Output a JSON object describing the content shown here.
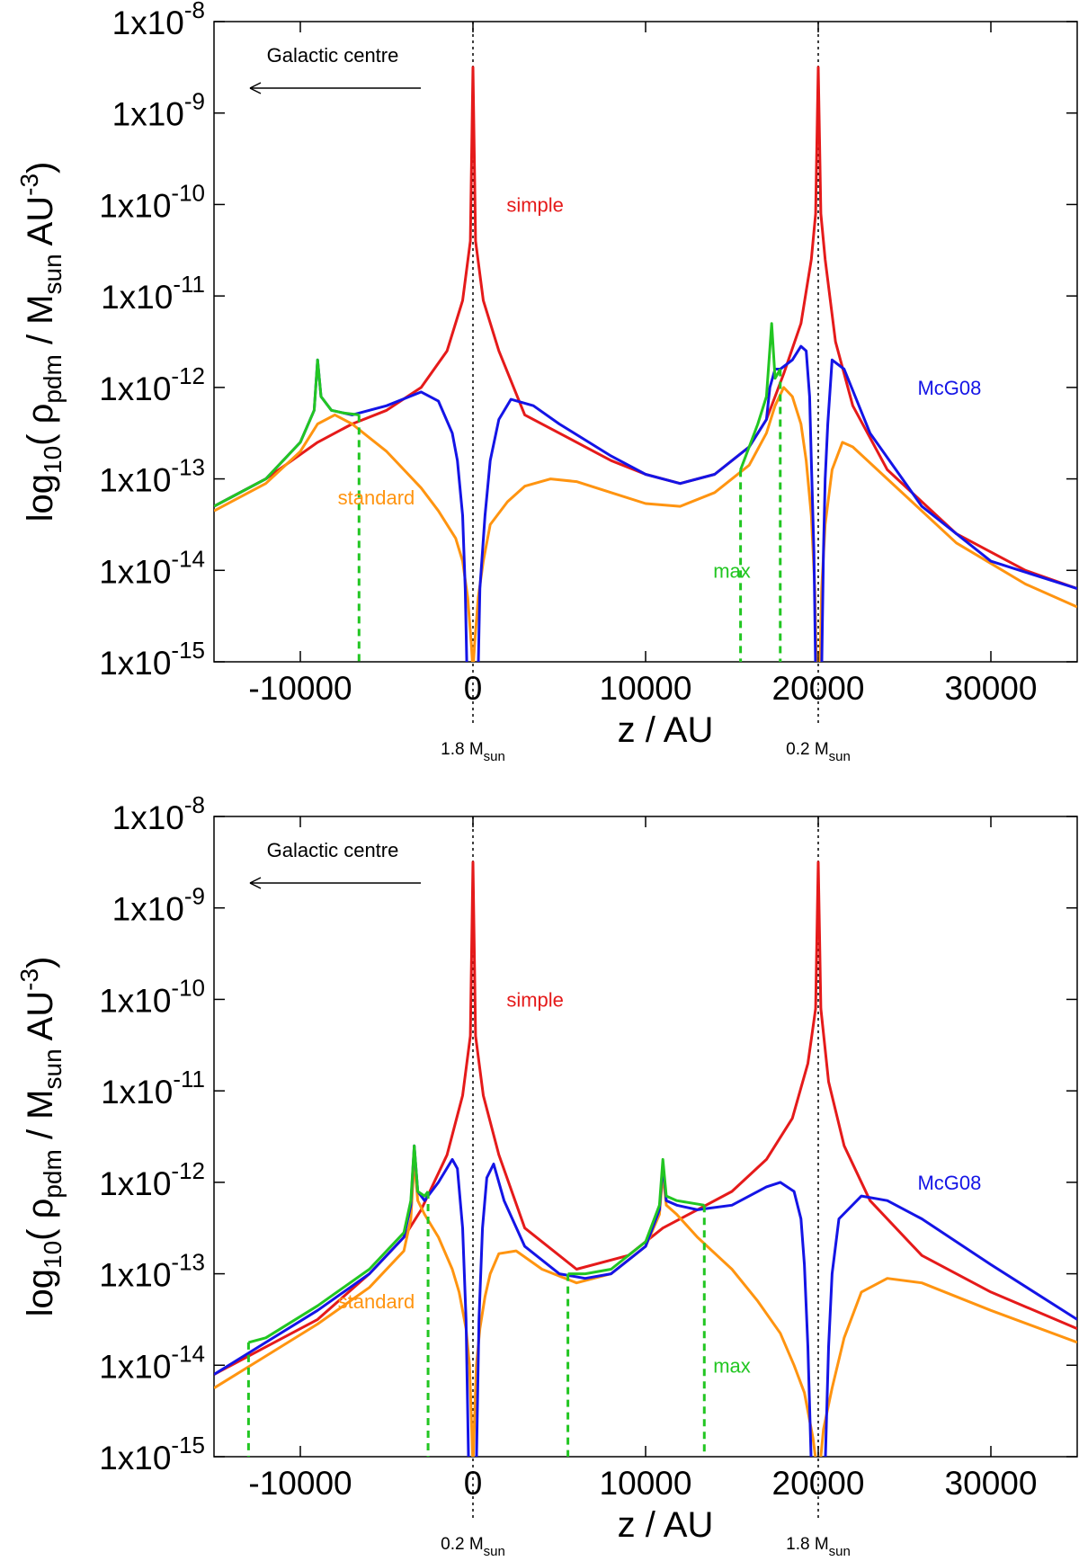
{
  "colors": {
    "simple": "#e51a1a",
    "standard": "#ff9410",
    "McG08": "#1414e6",
    "max": "#22c622",
    "axis": "#000000"
  },
  "chart_data": [
    {
      "type": "line",
      "panel": "top",
      "xlabel": "z / AU",
      "ylabel": "log10( ρpdm / Msun AU-3)",
      "ylabel_parts": {
        "prefix": "log",
        "base_sub": "10",
        "open": "( ρ",
        "rho_sub": "pdm",
        "mid": " / M",
        "m_sub": "sun",
        "unit": " AU",
        "unit_sup": "-3",
        "close": ")"
      },
      "xlim": [
        -15000,
        35000
      ],
      "ylim_log10": [
        -15,
        -8
      ],
      "xticks": [
        -10000,
        0,
        10000,
        20000,
        30000
      ],
      "xtick_labels": [
        "-10000",
        "0",
        "10000",
        "20000",
        "30000"
      ],
      "ytick_mantissa": "1x10",
      "ytick_exponents": [
        "-8",
        "-9",
        "-10",
        "-11",
        "-12",
        "-13",
        "-14",
        "-15"
      ],
      "yticks_log10": [
        -8,
        -9,
        -10,
        -11,
        -12,
        -13,
        -14,
        -15
      ],
      "arrow_text": "Galactic centre",
      "masses": [
        {
          "z": 0,
          "value": "1.8 M",
          "sub": "sun"
        },
        {
          "z": 20000,
          "value": "0.2 M",
          "sub": "sun"
        }
      ],
      "labels": [
        {
          "text": "simple",
          "series": "simple",
          "z": 3600,
          "log10_y": -10.0
        },
        {
          "text": "McG08",
          "series": "McG08",
          "z": 27600,
          "log10_y": -12.0
        },
        {
          "text": "standard",
          "series": "standard",
          "z": -5600,
          "log10_y": -13.2
        },
        {
          "text": "max",
          "series": "max",
          "z": 15000,
          "log10_y": -14.0
        }
      ],
      "max_markers_z": [
        -6600,
        15500,
        17800
      ],
      "series": [
        {
          "name": "simple",
          "x": [
            -15000,
            -12000,
            -9000,
            -7000,
            -5000,
            -3000,
            -1500,
            -600,
            -150,
            0,
            150,
            600,
            1500,
            3000,
            5000,
            8000,
            10000,
            12000,
            14000,
            16000,
            17000,
            18000,
            19000,
            19600,
            19850,
            20000,
            20150,
            20400,
            21000,
            22000,
            24000,
            28000,
            32000,
            35000
          ],
          "y": [
            -13.3,
            -13.0,
            -12.6,
            -12.4,
            -12.25,
            -12.0,
            -11.6,
            -11.05,
            -10.4,
            -8.5,
            -10.4,
            -11.05,
            -11.6,
            -12.3,
            -12.5,
            -12.8,
            -12.95,
            -13.05,
            -12.95,
            -12.65,
            -12.35,
            -11.85,
            -11.3,
            -10.6,
            -10.1,
            -8.5,
            -10.1,
            -10.6,
            -11.5,
            -12.2,
            -12.9,
            -13.6,
            -14.0,
            -14.2
          ]
        },
        {
          "name": "McG08",
          "x": [
            -15000,
            -12000,
            -10000,
            -9200,
            -9000,
            -8800,
            -8200,
            -7000,
            -5000,
            -3000,
            -2000,
            -1200,
            -900,
            -600,
            -450,
            -350,
            300,
            400,
            700,
            1000,
            1500,
            2200,
            3500,
            5000,
            8000,
            10000,
            12000,
            14000,
            16000,
            17000,
            17200,
            17500,
            17800,
            18500,
            19000,
            19300,
            19500,
            19600,
            19750,
            19850,
            20200,
            20300,
            20400,
            20550,
            20800,
            21500,
            23000,
            26000,
            30000,
            35000
          ],
          "y": [
            -13.3,
            -13.0,
            -12.6,
            -12.25,
            -11.7,
            -12.1,
            -12.25,
            -12.3,
            -12.2,
            -12.05,
            -12.15,
            -12.5,
            -12.8,
            -13.4,
            -14.2,
            -15.1,
            -15.1,
            -14.2,
            -13.4,
            -12.8,
            -12.35,
            -12.13,
            -12.2,
            -12.4,
            -12.75,
            -12.95,
            -13.05,
            -12.95,
            -12.65,
            -12.35,
            -12.0,
            -11.8,
            -11.8,
            -11.7,
            -11.55,
            -11.6,
            -12.1,
            -12.8,
            -13.8,
            -15.1,
            -15.1,
            -13.8,
            -13.0,
            -12.4,
            -11.7,
            -11.8,
            -12.5,
            -13.3,
            -13.9,
            -14.2
          ]
        },
        {
          "name": "standard",
          "x": [
            -15000,
            -12000,
            -10000,
            -9000,
            -8000,
            -7000,
            -6000,
            -5000,
            -4000,
            -3000,
            -2000,
            -1000,
            -600,
            -300,
            -100,
            0,
            100,
            300,
            600,
            1000,
            2000,
            3000,
            4500,
            6000,
            8000,
            10000,
            12000,
            14000,
            16000,
            17000,
            17500,
            18000,
            18500,
            19000,
            19300,
            19600,
            19800,
            19900,
            20100,
            20200,
            20400,
            20800,
            21400,
            22000,
            24000,
            28000,
            32000,
            35000
          ],
          "y": [
            -13.35,
            -13.05,
            -12.7,
            -12.4,
            -12.3,
            -12.4,
            -12.55,
            -12.7,
            -12.9,
            -13.1,
            -13.35,
            -13.65,
            -13.9,
            -14.3,
            -14.8,
            -15.1,
            -14.8,
            -14.3,
            -13.9,
            -13.5,
            -13.25,
            -13.08,
            -13.0,
            -13.03,
            -13.15,
            -13.27,
            -13.3,
            -13.15,
            -12.85,
            -12.5,
            -12.2,
            -12.0,
            -12.1,
            -12.4,
            -12.8,
            -13.4,
            -14.2,
            -15.1,
            -15.1,
            -14.2,
            -13.5,
            -12.9,
            -12.6,
            -12.65,
            -13.0,
            -13.7,
            -14.15,
            -14.4
          ]
        },
        {
          "name": "max",
          "segments": [
            {
              "x": [
                -15000,
                -12000,
                -10000,
                -9200,
                -9000,
                -8800,
                -8200,
                -7500,
                -6600
              ],
              "y": [
                -13.3,
                -13.0,
                -12.6,
                -12.25,
                -11.7,
                -12.1,
                -12.25,
                -12.28,
                -12.3
              ]
            },
            {
              "x": [
                15500,
                16000,
                16500,
                17000,
                17300,
                17500,
                17800
              ],
              "y": [
                -12.9,
                -12.65,
                -12.4,
                -12.1,
                -11.3,
                -11.9,
                -11.8
              ]
            }
          ]
        }
      ]
    },
    {
      "type": "line",
      "panel": "bottom",
      "xlabel": "z / AU",
      "ylabel": "log10( ρpdm / Msun AU-3)",
      "ylabel_parts": {
        "prefix": "log",
        "base_sub": "10",
        "open": "( ρ",
        "rho_sub": "pdm",
        "mid": " / M",
        "m_sub": "sun",
        "unit": " AU",
        "unit_sup": "-3",
        "close": ")"
      },
      "xlim": [
        -15000,
        35000
      ],
      "ylim_log10": [
        -15,
        -8
      ],
      "xticks": [
        -10000,
        0,
        10000,
        20000,
        30000
      ],
      "xtick_labels": [
        "-10000",
        "0",
        "10000",
        "20000",
        "30000"
      ],
      "ytick_mantissa": "1x10",
      "ytick_exponents": [
        "-8",
        "-9",
        "-10",
        "-11",
        "-12",
        "-13",
        "-14",
        "-15"
      ],
      "yticks_log10": [
        -8,
        -9,
        -10,
        -11,
        -12,
        -13,
        -14,
        -15
      ],
      "arrow_text": "Galactic centre",
      "masses": [
        {
          "z": 0,
          "value": "0.2 M",
          "sub": "sun"
        },
        {
          "z": 20000,
          "value": "1.8 M",
          "sub": "sun"
        }
      ],
      "labels": [
        {
          "text": "simple",
          "series": "simple",
          "z": 3600,
          "log10_y": -10.0
        },
        {
          "text": "McG08",
          "series": "McG08",
          "z": 27600,
          "log10_y": -12.0
        },
        {
          "text": "standard",
          "series": "standard",
          "z": -5600,
          "log10_y": -13.3
        },
        {
          "text": "max",
          "series": "max",
          "z": 15000,
          "log10_y": -14.0
        }
      ],
      "max_markers_z": [
        -13000,
        -2600,
        5500,
        13400
      ],
      "series": [
        {
          "name": "simple",
          "x": [
            -15000,
            -12000,
            -9000,
            -6000,
            -4000,
            -3000,
            -1500,
            -600,
            -150,
            0,
            150,
            600,
            1500,
            3000,
            6000,
            9000,
            11000,
            13000,
            15000,
            17000,
            18500,
            19400,
            19850,
            20000,
            20150,
            20600,
            21500,
            23000,
            26000,
            30000,
            35000
          ],
          "y": [
            -14.1,
            -13.8,
            -13.5,
            -13.0,
            -12.6,
            -12.3,
            -11.7,
            -11.05,
            -10.4,
            -8.5,
            -10.4,
            -11.05,
            -11.7,
            -12.5,
            -12.95,
            -12.8,
            -12.5,
            -12.3,
            -12.1,
            -11.75,
            -11.3,
            -10.7,
            -10.1,
            -8.5,
            -10.1,
            -10.9,
            -11.6,
            -12.2,
            -12.8,
            -13.2,
            -13.6
          ]
        },
        {
          "name": "McG08",
          "x": [
            -15000,
            -12000,
            -9000,
            -6000,
            -4000,
            -3600,
            -3400,
            -3200,
            -2800,
            -2000,
            -1200,
            -900,
            -600,
            -400,
            -250,
            200,
            350,
            550,
            800,
            1200,
            1800,
            3000,
            5000,
            6500,
            8000,
            10000,
            10800,
            11000,
            11200,
            11800,
            13000,
            15000,
            17000,
            17800,
            18600,
            19000,
            19200,
            19400,
            19600,
            20400,
            20600,
            20800,
            21200,
            22500,
            24000,
            26000,
            30000,
            35000
          ],
          "y": [
            -14.1,
            -13.75,
            -13.4,
            -13.0,
            -12.6,
            -12.25,
            -11.6,
            -12.1,
            -12.2,
            -12.0,
            -11.75,
            -11.85,
            -12.5,
            -13.5,
            -15.1,
            -15.1,
            -13.5,
            -12.5,
            -11.95,
            -11.8,
            -12.2,
            -12.7,
            -13.0,
            -13.05,
            -13.0,
            -12.7,
            -12.3,
            -11.8,
            -12.2,
            -12.25,
            -12.3,
            -12.25,
            -12.05,
            -12.0,
            -12.1,
            -12.4,
            -12.9,
            -13.8,
            -15.1,
            -15.1,
            -13.8,
            -13.0,
            -12.4,
            -12.15,
            -12.2,
            -12.4,
            -12.9,
            -13.5
          ]
        },
        {
          "name": "standard",
          "x": [
            -15000,
            -12000,
            -9000,
            -6000,
            -4000,
            -3600,
            -3400,
            -3200,
            -2800,
            -2000,
            -1200,
            -800,
            -400,
            -200,
            0,
            200,
            400,
            700,
            1000,
            1500,
            2500,
            4000,
            6000,
            8000,
            10000,
            10800,
            11000,
            11200,
            11800,
            13000,
            15000,
            16500,
            17800,
            18600,
            19200,
            19700,
            19900,
            20100,
            20300,
            20800,
            21500,
            22500,
            24000,
            26000,
            30000,
            35000
          ],
          "y": [
            -14.25,
            -13.9,
            -13.55,
            -13.15,
            -12.75,
            -12.4,
            -11.75,
            -12.2,
            -12.35,
            -12.6,
            -12.95,
            -13.2,
            -13.6,
            -14.0,
            -15.1,
            -14.0,
            -13.6,
            -13.25,
            -13.0,
            -12.78,
            -12.75,
            -12.95,
            -13.1,
            -13.0,
            -12.7,
            -12.35,
            -11.9,
            -12.25,
            -12.35,
            -12.6,
            -12.95,
            -13.3,
            -13.65,
            -14.0,
            -14.3,
            -14.8,
            -15.1,
            -15.1,
            -14.7,
            -14.25,
            -13.7,
            -13.2,
            -13.05,
            -13.1,
            -13.4,
            -13.75
          ]
        },
        {
          "name": "max",
          "segments": [
            {
              "x": [
                -13000,
                -12000,
                -9000,
                -6000,
                -4000,
                -3600,
                -3400,
                -3200,
                -2800,
                -2600
              ],
              "y": [
                -13.75,
                -13.7,
                -13.35,
                -12.95,
                -12.55,
                -12.2,
                -11.6,
                -12.1,
                -12.15,
                -12.1
              ]
            },
            {
              "x": [
                5500,
                6500,
                8000,
                10000,
                10800,
                11000,
                11200,
                11800,
                13400
              ],
              "y": [
                -13.0,
                -13.0,
                -12.95,
                -12.65,
                -12.25,
                -11.75,
                -12.15,
                -12.2,
                -12.25
              ]
            }
          ]
        }
      ]
    }
  ]
}
